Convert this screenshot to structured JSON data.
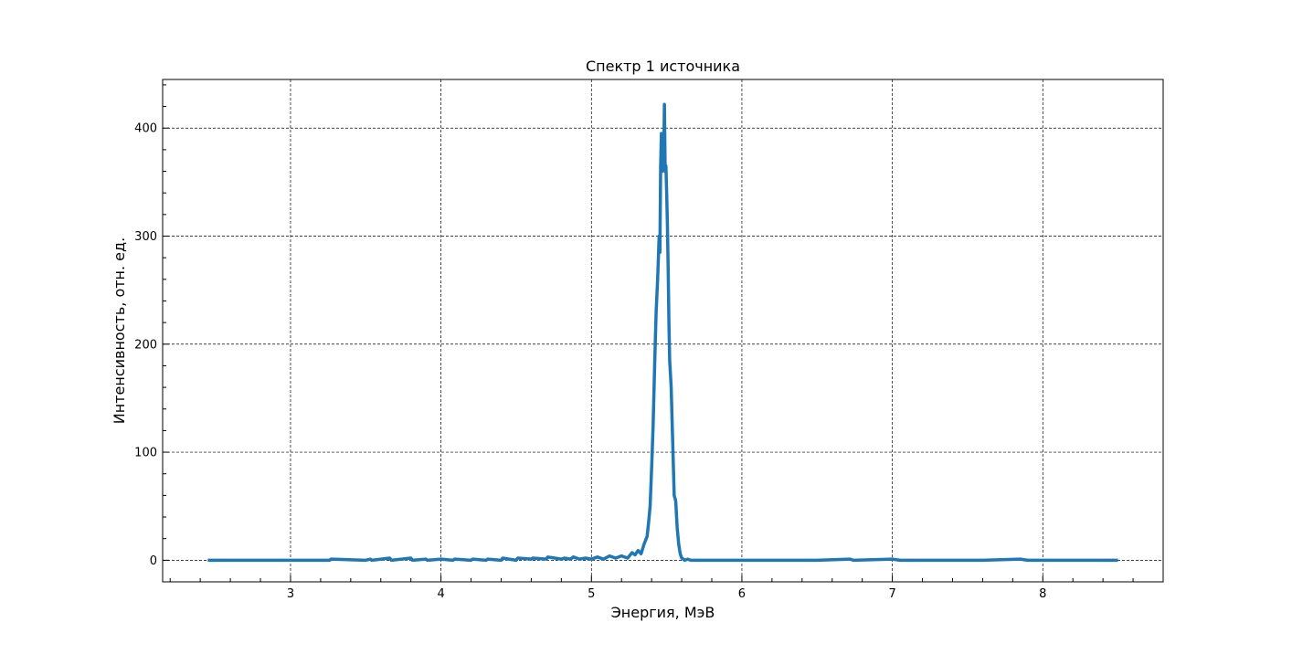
{
  "chart_data": {
    "type": "line",
    "title": "Спектр 1 источника",
    "xlabel": "Энергия, МэВ",
    "ylabel": "Интенсивность, отн. ед.",
    "xlim": [
      2.15,
      8.8
    ],
    "ylim": [
      -20,
      445
    ],
    "xticks": [
      3,
      4,
      5,
      6,
      7,
      8
    ],
    "yticks": [
      0,
      100,
      200,
      300,
      400
    ],
    "x_minor_step": 0.2,
    "y_minor_step": 20,
    "grid": true,
    "legend": "none",
    "line_color": "#1f77b4",
    "series": [
      {
        "x": [
          2.45,
          2.8,
          3.0,
          3.26,
          3.27,
          3.5,
          3.53,
          3.54,
          3.66,
          3.67,
          3.8,
          3.81,
          3.9,
          3.91,
          4.0,
          4.08,
          4.09,
          4.2,
          4.21,
          4.3,
          4.31,
          4.4,
          4.41,
          4.5,
          4.51,
          4.6,
          4.61,
          4.7,
          4.71,
          4.8,
          4.82,
          4.86,
          4.88,
          4.92,
          4.96,
          5.0,
          5.04,
          5.08,
          5.12,
          5.16,
          5.2,
          5.24,
          5.27,
          5.29,
          5.31,
          5.33,
          5.35,
          5.37,
          5.38,
          5.39,
          5.4,
          5.41,
          5.42,
          5.43,
          5.44,
          5.45,
          5.455,
          5.46,
          5.465,
          5.47,
          5.475,
          5.48,
          5.485,
          5.49,
          5.495,
          5.5,
          5.505,
          5.51,
          5.515,
          5.52,
          5.53,
          5.54,
          5.55,
          5.56,
          5.57,
          5.58,
          5.59,
          5.6,
          5.61,
          5.62,
          5.64,
          5.66,
          5.7,
          5.8,
          6.0,
          6.2,
          6.5,
          6.72,
          6.74,
          7.0,
          7.05,
          7.3,
          7.5,
          7.6,
          7.85,
          7.9,
          8.2,
          8.5
        ],
        "y": [
          0,
          0,
          0,
          0,
          1,
          0,
          1,
          0,
          2,
          0,
          2,
          0,
          1,
          0,
          1,
          0,
          1,
          0,
          1,
          0,
          1,
          0,
          2,
          0,
          2,
          1,
          2,
          1,
          3,
          1,
          2,
          1,
          3,
          1,
          2,
          1,
          3,
          1,
          4,
          2,
          4,
          2,
          7,
          5,
          9,
          6,
          15,
          22,
          35,
          50,
          85,
          125,
          180,
          230,
          260,
          300,
          285,
          365,
          395,
          360,
          385,
          370,
          422,
          360,
          365,
          340,
          310,
          270,
          220,
          185,
          160,
          110,
          60,
          55,
          30,
          15,
          6,
          2,
          1,
          0,
          1,
          0,
          0,
          0,
          0,
          0,
          0,
          1,
          0,
          1,
          0,
          0,
          0,
          0,
          1,
          0,
          0,
          0
        ]
      }
    ]
  }
}
